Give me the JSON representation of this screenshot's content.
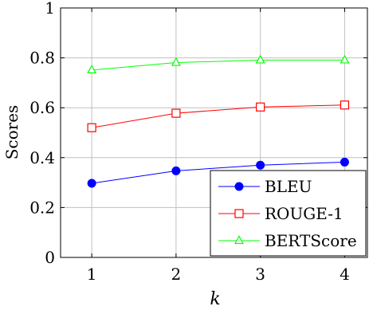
{
  "chart_data": {
    "type": "line",
    "x": [
      1,
      2,
      3,
      4
    ],
    "xlabel": "k",
    "ylabel": "Scores",
    "xlim": [
      0.63,
      4.27
    ],
    "ylim": [
      0,
      1
    ],
    "xticks": [
      "1",
      "2",
      "3",
      "4"
    ],
    "yticks": [
      "0",
      "0.2",
      "0.4",
      "0.6",
      "0.8",
      "1"
    ],
    "grid": true,
    "legend_position": "bottom-right",
    "series": [
      {
        "name": "BLEU",
        "values": [
          0.297,
          0.347,
          0.37,
          0.382
        ],
        "color": "#0000ff",
        "marker": "filled-circle"
      },
      {
        "name": "ROUGE-1",
        "values": [
          0.52,
          0.578,
          0.603,
          0.611
        ],
        "color": "#ff0000",
        "marker": "open-square"
      },
      {
        "name": "BERTScore",
        "values": [
          0.751,
          0.781,
          0.791,
          0.791
        ],
        "color": "#00ff00",
        "marker": "open-triangle"
      }
    ]
  }
}
